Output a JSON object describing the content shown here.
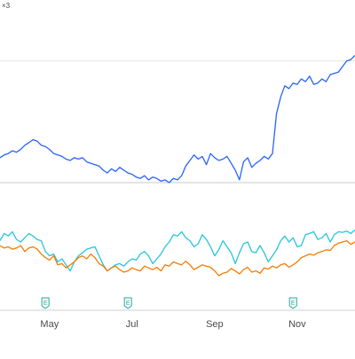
{
  "colors": {
    "series_1": "#2962ff",
    "series_2": "#26c6da",
    "series_3": "#f57c00",
    "grid": "#e6e6e6",
    "axis_text": "#4a4a4a",
    "event_marker": "#26a69a",
    "background": "#ffffff"
  },
  "chart_data": {
    "type": "line",
    "title": "",
    "xlabel": "",
    "ylabel": "",
    "corner_label": "×3",
    "x_ticks": [
      "May",
      "Jul",
      "Sep",
      "Nov"
    ],
    "x_tick_positions": [
      5.0,
      7.0,
      9.0,
      11.0
    ],
    "xlim": [
      3.8,
      12.4
    ],
    "grid": "horizontal",
    "legend": "none",
    "upper_pane": {
      "ylim": [
        0,
        100
      ],
      "reference_lines": [
        88,
        0
      ],
      "series": [
        {
          "color_key": "series_1",
          "x": [
            3.8,
            3.9,
            4.0,
            4.1,
            4.2,
            4.3,
            4.4,
            4.5,
            4.6,
            4.7,
            4.8,
            4.9,
            5.0,
            5.1,
            5.2,
            5.3,
            5.4,
            5.5,
            5.6,
            5.7,
            5.8,
            5.9,
            6.0,
            6.1,
            6.2,
            6.3,
            6.4,
            6.5,
            6.6,
            6.7,
            6.8,
            6.9,
            7.0,
            7.1,
            7.2,
            7.3,
            7.4,
            7.5,
            7.6,
            7.7,
            7.8,
            7.9,
            8.0,
            8.1,
            8.2,
            8.3,
            8.4,
            8.5,
            8.6,
            8.7,
            8.8,
            8.9,
            9.0,
            9.1,
            9.2,
            9.3,
            9.4,
            9.5,
            9.6,
            9.7,
            9.8,
            9.9,
            10.0,
            10.1,
            10.2,
            10.3,
            10.4,
            10.5,
            10.6,
            10.7,
            10.8,
            10.9,
            11.0,
            11.1,
            11.2,
            11.3,
            11.4,
            11.5,
            11.6,
            11.7,
            11.8,
            11.9,
            12.0,
            12.1,
            12.2,
            12.3,
            12.4
          ],
          "y": [
            18,
            20,
            21,
            23,
            22,
            24,
            27,
            29,
            31,
            30,
            27,
            26,
            24,
            21,
            20,
            19,
            17,
            16,
            18,
            17,
            18,
            15,
            14,
            13,
            12,
            9,
            7,
            10,
            8,
            11,
            9,
            7,
            6,
            4,
            3,
            5,
            2,
            4,
            3,
            1,
            2,
            0,
            3,
            2,
            5,
            12,
            16,
            20,
            17,
            19,
            13,
            21,
            18,
            16,
            17,
            19,
            14,
            9,
            2,
            15,
            18,
            11,
            14,
            16,
            19,
            17,
            21,
            50,
            62,
            70,
            68,
            72,
            71,
            75,
            73,
            77,
            71,
            72,
            75,
            73,
            78,
            79,
            80,
            84,
            88,
            89,
            92
          ]
        }
      ]
    },
    "lower_pane": {
      "ylim": [
        0,
        100
      ],
      "event_markers": [
        {
          "x": 4.9,
          "label": "E"
        },
        {
          "x": 6.9,
          "label": "E"
        },
        {
          "x": 10.9,
          "label": "E"
        }
      ],
      "series": [
        {
          "color_key": "series_2",
          "x": [
            3.8,
            3.9,
            4.0,
            4.1,
            4.2,
            4.3,
            4.4,
            4.5,
            4.6,
            4.7,
            4.8,
            4.9,
            5.0,
            5.1,
            5.2,
            5.3,
            5.4,
            5.5,
            5.6,
            5.7,
            5.8,
            5.9,
            6.0,
            6.1,
            6.2,
            6.3,
            6.4,
            6.5,
            6.6,
            6.7,
            6.8,
            6.9,
            7.0,
            7.1,
            7.2,
            7.3,
            7.4,
            7.5,
            7.6,
            7.7,
            7.8,
            7.9,
            8.0,
            8.1,
            8.2,
            8.3,
            8.4,
            8.5,
            8.6,
            8.7,
            8.8,
            8.9,
            9.0,
            9.1,
            9.2,
            9.3,
            9.4,
            9.5,
            9.6,
            9.7,
            9.8,
            9.9,
            10.0,
            10.1,
            10.2,
            10.3,
            10.4,
            10.5,
            10.6,
            10.7,
            10.8,
            10.9,
            11.0,
            11.1,
            11.2,
            11.3,
            11.4,
            11.5,
            11.6,
            11.7,
            11.8,
            11.9,
            12.0,
            12.1,
            12.2,
            12.3,
            12.4
          ],
          "y": [
            80,
            92,
            88,
            95,
            82,
            78,
            85,
            92,
            88,
            82,
            80,
            62,
            55,
            58,
            45,
            50,
            40,
            30,
            45,
            55,
            60,
            66,
            68,
            70,
            55,
            40,
            30,
            35,
            40,
            42,
            38,
            45,
            50,
            48,
            58,
            62,
            55,
            42,
            50,
            58,
            70,
            78,
            90,
            88,
            95,
            85,
            80,
            70,
            75,
            90,
            82,
            70,
            55,
            65,
            80,
            70,
            60,
            42,
            60,
            75,
            78,
            62,
            60,
            72,
            60,
            45,
            55,
            65,
            80,
            88,
            78,
            85,
            70,
            72,
            90,
            92,
            95,
            82,
            85,
            92,
            78,
            90,
            95,
            94,
            96,
            92,
            98
          ]
        },
        {
          "color_key": "series_3",
          "x": [
            3.8,
            3.9,
            4.0,
            4.1,
            4.2,
            4.3,
            4.4,
            4.5,
            4.6,
            4.7,
            4.8,
            4.9,
            5.0,
            5.1,
            5.2,
            5.3,
            5.4,
            5.5,
            5.6,
            5.7,
            5.8,
            5.9,
            6.0,
            6.1,
            6.2,
            6.3,
            6.4,
            6.5,
            6.6,
            6.7,
            6.8,
            6.9,
            7.0,
            7.1,
            7.2,
            7.3,
            7.4,
            7.5,
            7.6,
            7.7,
            7.8,
            7.9,
            8.0,
            8.1,
            8.2,
            8.3,
            8.4,
            8.5,
            8.6,
            8.7,
            8.8,
            8.9,
            9.0,
            9.1,
            9.2,
            9.3,
            9.4,
            9.5,
            9.6,
            9.7,
            9.8,
            9.9,
            10.0,
            10.1,
            10.2,
            10.3,
            10.4,
            10.5,
            10.6,
            10.7,
            10.8,
            10.9,
            11.0,
            11.1,
            11.2,
            11.3,
            11.4,
            11.5,
            11.6,
            11.7,
            11.8,
            11.9,
            12.0,
            12.1,
            12.2,
            12.3,
            12.4
          ],
          "y": [
            72,
            68,
            70,
            66,
            68,
            72,
            62,
            68,
            70,
            66,
            58,
            52,
            48,
            55,
            40,
            42,
            35,
            40,
            45,
            52,
            55,
            50,
            58,
            52,
            42,
            38,
            30,
            35,
            38,
            32,
            28,
            30,
            35,
            32,
            30,
            38,
            35,
            32,
            36,
            30,
            40,
            38,
            45,
            42,
            40,
            46,
            40,
            32,
            36,
            40,
            38,
            36,
            30,
            22,
            26,
            28,
            34,
            30,
            25,
            32,
            36,
            28,
            30,
            26,
            35,
            33,
            38,
            35,
            40,
            42,
            36,
            40,
            45,
            52,
            55,
            58,
            56,
            60,
            62,
            65,
            64,
            72,
            76,
            78,
            80,
            74,
            78
          ]
        }
      ]
    }
  }
}
